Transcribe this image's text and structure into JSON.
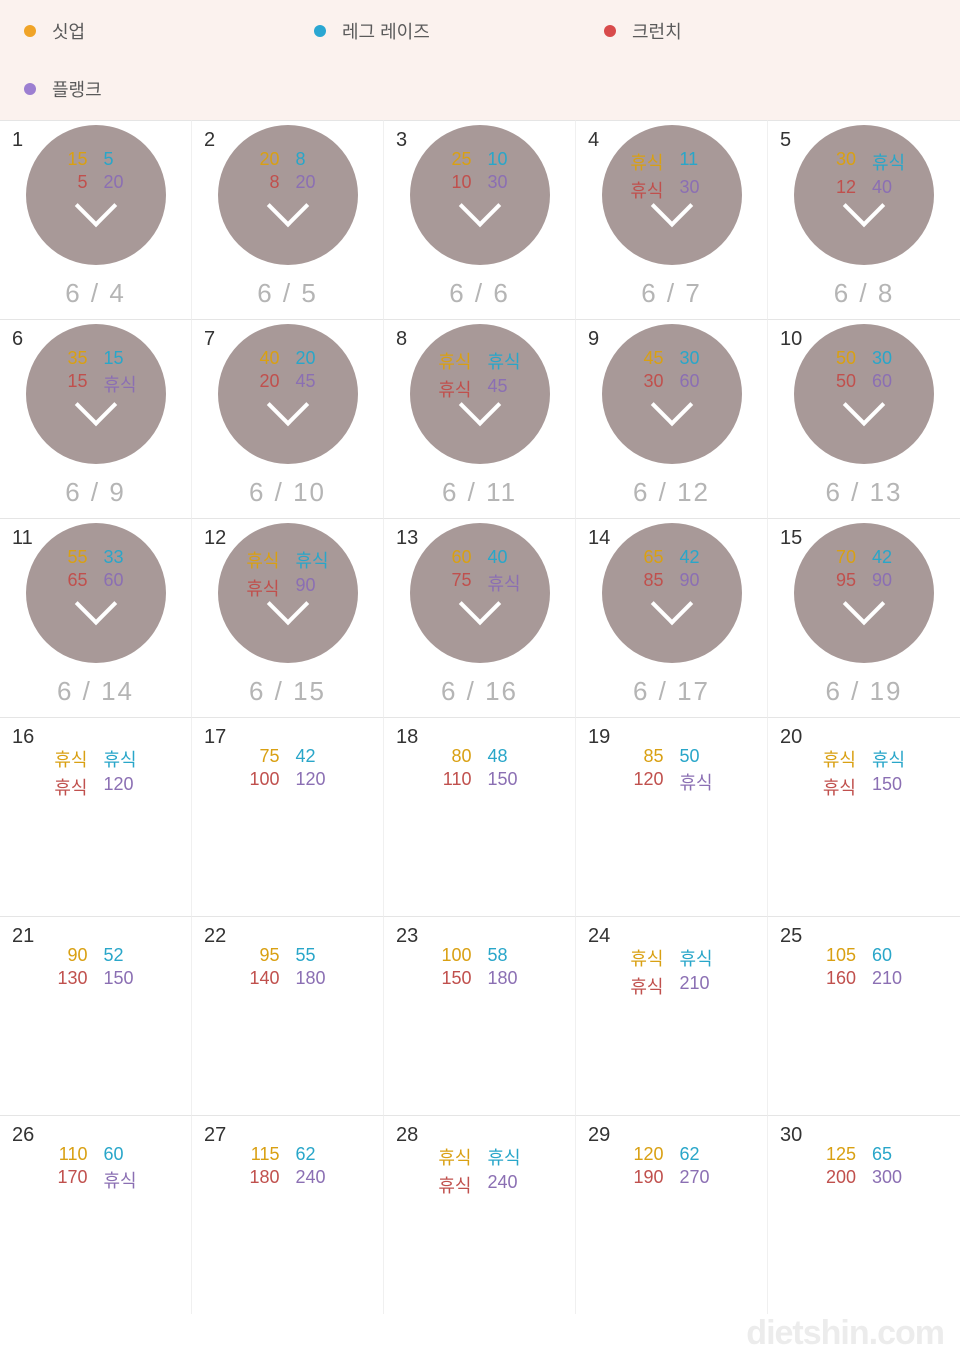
{
  "colors": {
    "situp": "#f0a427",
    "leg": "#2aa7d2",
    "crunch": "#d84b4b",
    "plank": "#9c7fd1",
    "circle_bg": "#a89998",
    "legend_bg": "#fbf2ee",
    "date_text": "#b5b5b5"
  },
  "legend": {
    "items": [
      {
        "key": "situp",
        "label": "싯업",
        "color": "#f0a427"
      },
      {
        "key": "leg",
        "label": "레그 레이즈",
        "color": "#2aa7d2"
      },
      {
        "key": "crunch",
        "label": "크런치",
        "color": "#d84b4b"
      },
      {
        "key": "plank",
        "label": "플랭크",
        "color": "#9c7fd1"
      }
    ]
  },
  "rest_label": "휴식",
  "days": [
    {
      "n": 1,
      "date": "6 / 4",
      "done": true,
      "situp": "15",
      "leg": "5",
      "crunch": "5",
      "plank": "20"
    },
    {
      "n": 2,
      "date": "6 / 5",
      "done": true,
      "situp": "20",
      "leg": "8",
      "crunch": "8",
      "plank": "20"
    },
    {
      "n": 3,
      "date": "6 / 6",
      "done": true,
      "situp": "25",
      "leg": "10",
      "crunch": "10",
      "plank": "30"
    },
    {
      "n": 4,
      "date": "6 / 7",
      "done": true,
      "situp": "휴식",
      "leg": "11",
      "crunch": "휴식",
      "plank": "30"
    },
    {
      "n": 5,
      "date": "6 / 8",
      "done": true,
      "situp": "30",
      "leg": "휴식",
      "crunch": "12",
      "plank": "40"
    },
    {
      "n": 6,
      "date": "6 / 9",
      "done": true,
      "situp": "35",
      "leg": "15",
      "crunch": "15",
      "plank": "휴식"
    },
    {
      "n": 7,
      "date": "6 / 10",
      "done": true,
      "situp": "40",
      "leg": "20",
      "crunch": "20",
      "plank": "45"
    },
    {
      "n": 8,
      "date": "6 / 11",
      "done": true,
      "situp": "휴식",
      "leg": "휴식",
      "crunch": "휴식",
      "plank": "45"
    },
    {
      "n": 9,
      "date": "6 / 12",
      "done": true,
      "situp": "45",
      "leg": "30",
      "crunch": "30",
      "plank": "60"
    },
    {
      "n": 10,
      "date": "6 / 13",
      "done": true,
      "situp": "50",
      "leg": "30",
      "crunch": "50",
      "plank": "60"
    },
    {
      "n": 11,
      "date": "6 / 14",
      "done": true,
      "situp": "55",
      "leg": "33",
      "crunch": "65",
      "plank": "60"
    },
    {
      "n": 12,
      "date": "6 / 15",
      "done": true,
      "situp": "휴식",
      "leg": "휴식",
      "crunch": "휴식",
      "plank": "90"
    },
    {
      "n": 13,
      "date": "6 / 16",
      "done": true,
      "situp": "60",
      "leg": "40",
      "crunch": "75",
      "plank": "휴식"
    },
    {
      "n": 14,
      "date": "6 / 17",
      "done": true,
      "situp": "65",
      "leg": "42",
      "crunch": "85",
      "plank": "90"
    },
    {
      "n": 15,
      "date": "6 / 19",
      "done": true,
      "situp": "70",
      "leg": "42",
      "crunch": "95",
      "plank": "90"
    },
    {
      "n": 16,
      "date": "",
      "done": false,
      "situp": "휴식",
      "leg": "휴식",
      "crunch": "휴식",
      "plank": "120"
    },
    {
      "n": 17,
      "date": "",
      "done": false,
      "situp": "75",
      "leg": "42",
      "crunch": "100",
      "plank": "120"
    },
    {
      "n": 18,
      "date": "",
      "done": false,
      "situp": "80",
      "leg": "48",
      "crunch": "110",
      "plank": "150"
    },
    {
      "n": 19,
      "date": "",
      "done": false,
      "situp": "85",
      "leg": "50",
      "crunch": "120",
      "plank": "휴식"
    },
    {
      "n": 20,
      "date": "",
      "done": false,
      "situp": "휴식",
      "leg": "휴식",
      "crunch": "휴식",
      "plank": "150"
    },
    {
      "n": 21,
      "date": "",
      "done": false,
      "situp": "90",
      "leg": "52",
      "crunch": "130",
      "plank": "150"
    },
    {
      "n": 22,
      "date": "",
      "done": false,
      "situp": "95",
      "leg": "55",
      "crunch": "140",
      "plank": "180"
    },
    {
      "n": 23,
      "date": "",
      "done": false,
      "situp": "100",
      "leg": "58",
      "crunch": "150",
      "plank": "180"
    },
    {
      "n": 24,
      "date": "",
      "done": false,
      "situp": "휴식",
      "leg": "휴식",
      "crunch": "휴식",
      "plank": "210"
    },
    {
      "n": 25,
      "date": "",
      "done": false,
      "situp": "105",
      "leg": "60",
      "crunch": "160",
      "plank": "210"
    },
    {
      "n": 26,
      "date": "",
      "done": false,
      "situp": "110",
      "leg": "60",
      "crunch": "170",
      "plank": "휴식"
    },
    {
      "n": 27,
      "date": "",
      "done": false,
      "situp": "115",
      "leg": "62",
      "crunch": "180",
      "plank": "240"
    },
    {
      "n": 28,
      "date": "",
      "done": false,
      "situp": "휴식",
      "leg": "휴식",
      "crunch": "휴식",
      "plank": "240"
    },
    {
      "n": 29,
      "date": "",
      "done": false,
      "situp": "120",
      "leg": "62",
      "crunch": "190",
      "plank": "270"
    },
    {
      "n": 30,
      "date": "",
      "done": false,
      "situp": "125",
      "leg": "65",
      "crunch": "200",
      "plank": "300"
    }
  ],
  "watermark": "dietshin.com"
}
